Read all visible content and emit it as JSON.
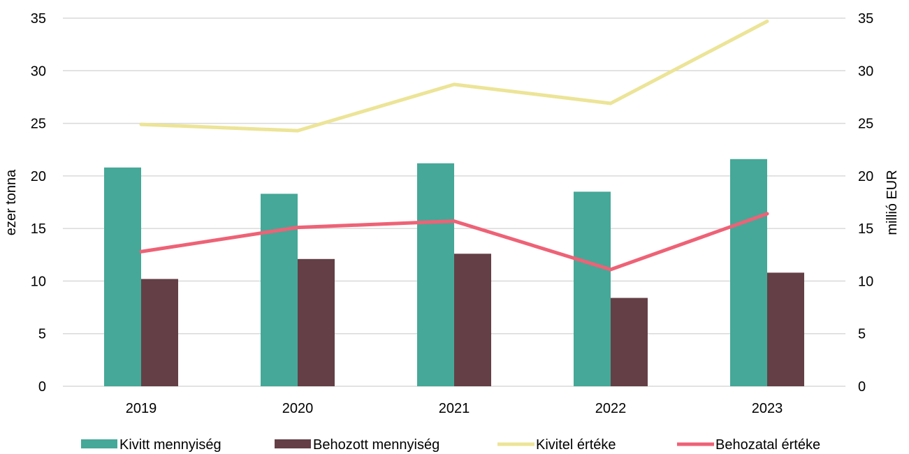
{
  "chart_data": {
    "type": "bar",
    "categories": [
      "2019",
      "2020",
      "2021",
      "2022",
      "2023"
    ],
    "y_left": {
      "label": "ezer tonna",
      "ticks": [
        "0",
        "5",
        "10",
        "15",
        "20",
        "25",
        "30",
        "35"
      ],
      "lim": [
        0,
        35
      ]
    },
    "y_right": {
      "label": "millió EUR",
      "ticks": [
        "0",
        "5",
        "10",
        "15",
        "20",
        "25",
        "30",
        "35"
      ],
      "lim": [
        0,
        35
      ]
    },
    "grid": true,
    "legend_position": "bottom",
    "series": [
      {
        "name": "Kivitt mennyiség",
        "type": "bar",
        "axis": "left",
        "color": "#45a898",
        "values": [
          20.8,
          18.3,
          21.2,
          18.5,
          21.6
        ]
      },
      {
        "name": "Behozott mennyiség",
        "type": "bar",
        "axis": "left",
        "color": "#643f46",
        "values": [
          10.2,
          12.1,
          12.6,
          8.4,
          10.8
        ]
      },
      {
        "name": "Kivitel értéke",
        "type": "line",
        "axis": "right",
        "color": "#ece497",
        "values": [
          24.9,
          24.3,
          28.7,
          26.9,
          34.7
        ]
      },
      {
        "name": "Behozatal értéke",
        "type": "line",
        "axis": "right",
        "color": "#ee6276",
        "values": [
          12.8,
          15.1,
          15.7,
          11.1,
          16.4
        ]
      }
    ]
  }
}
